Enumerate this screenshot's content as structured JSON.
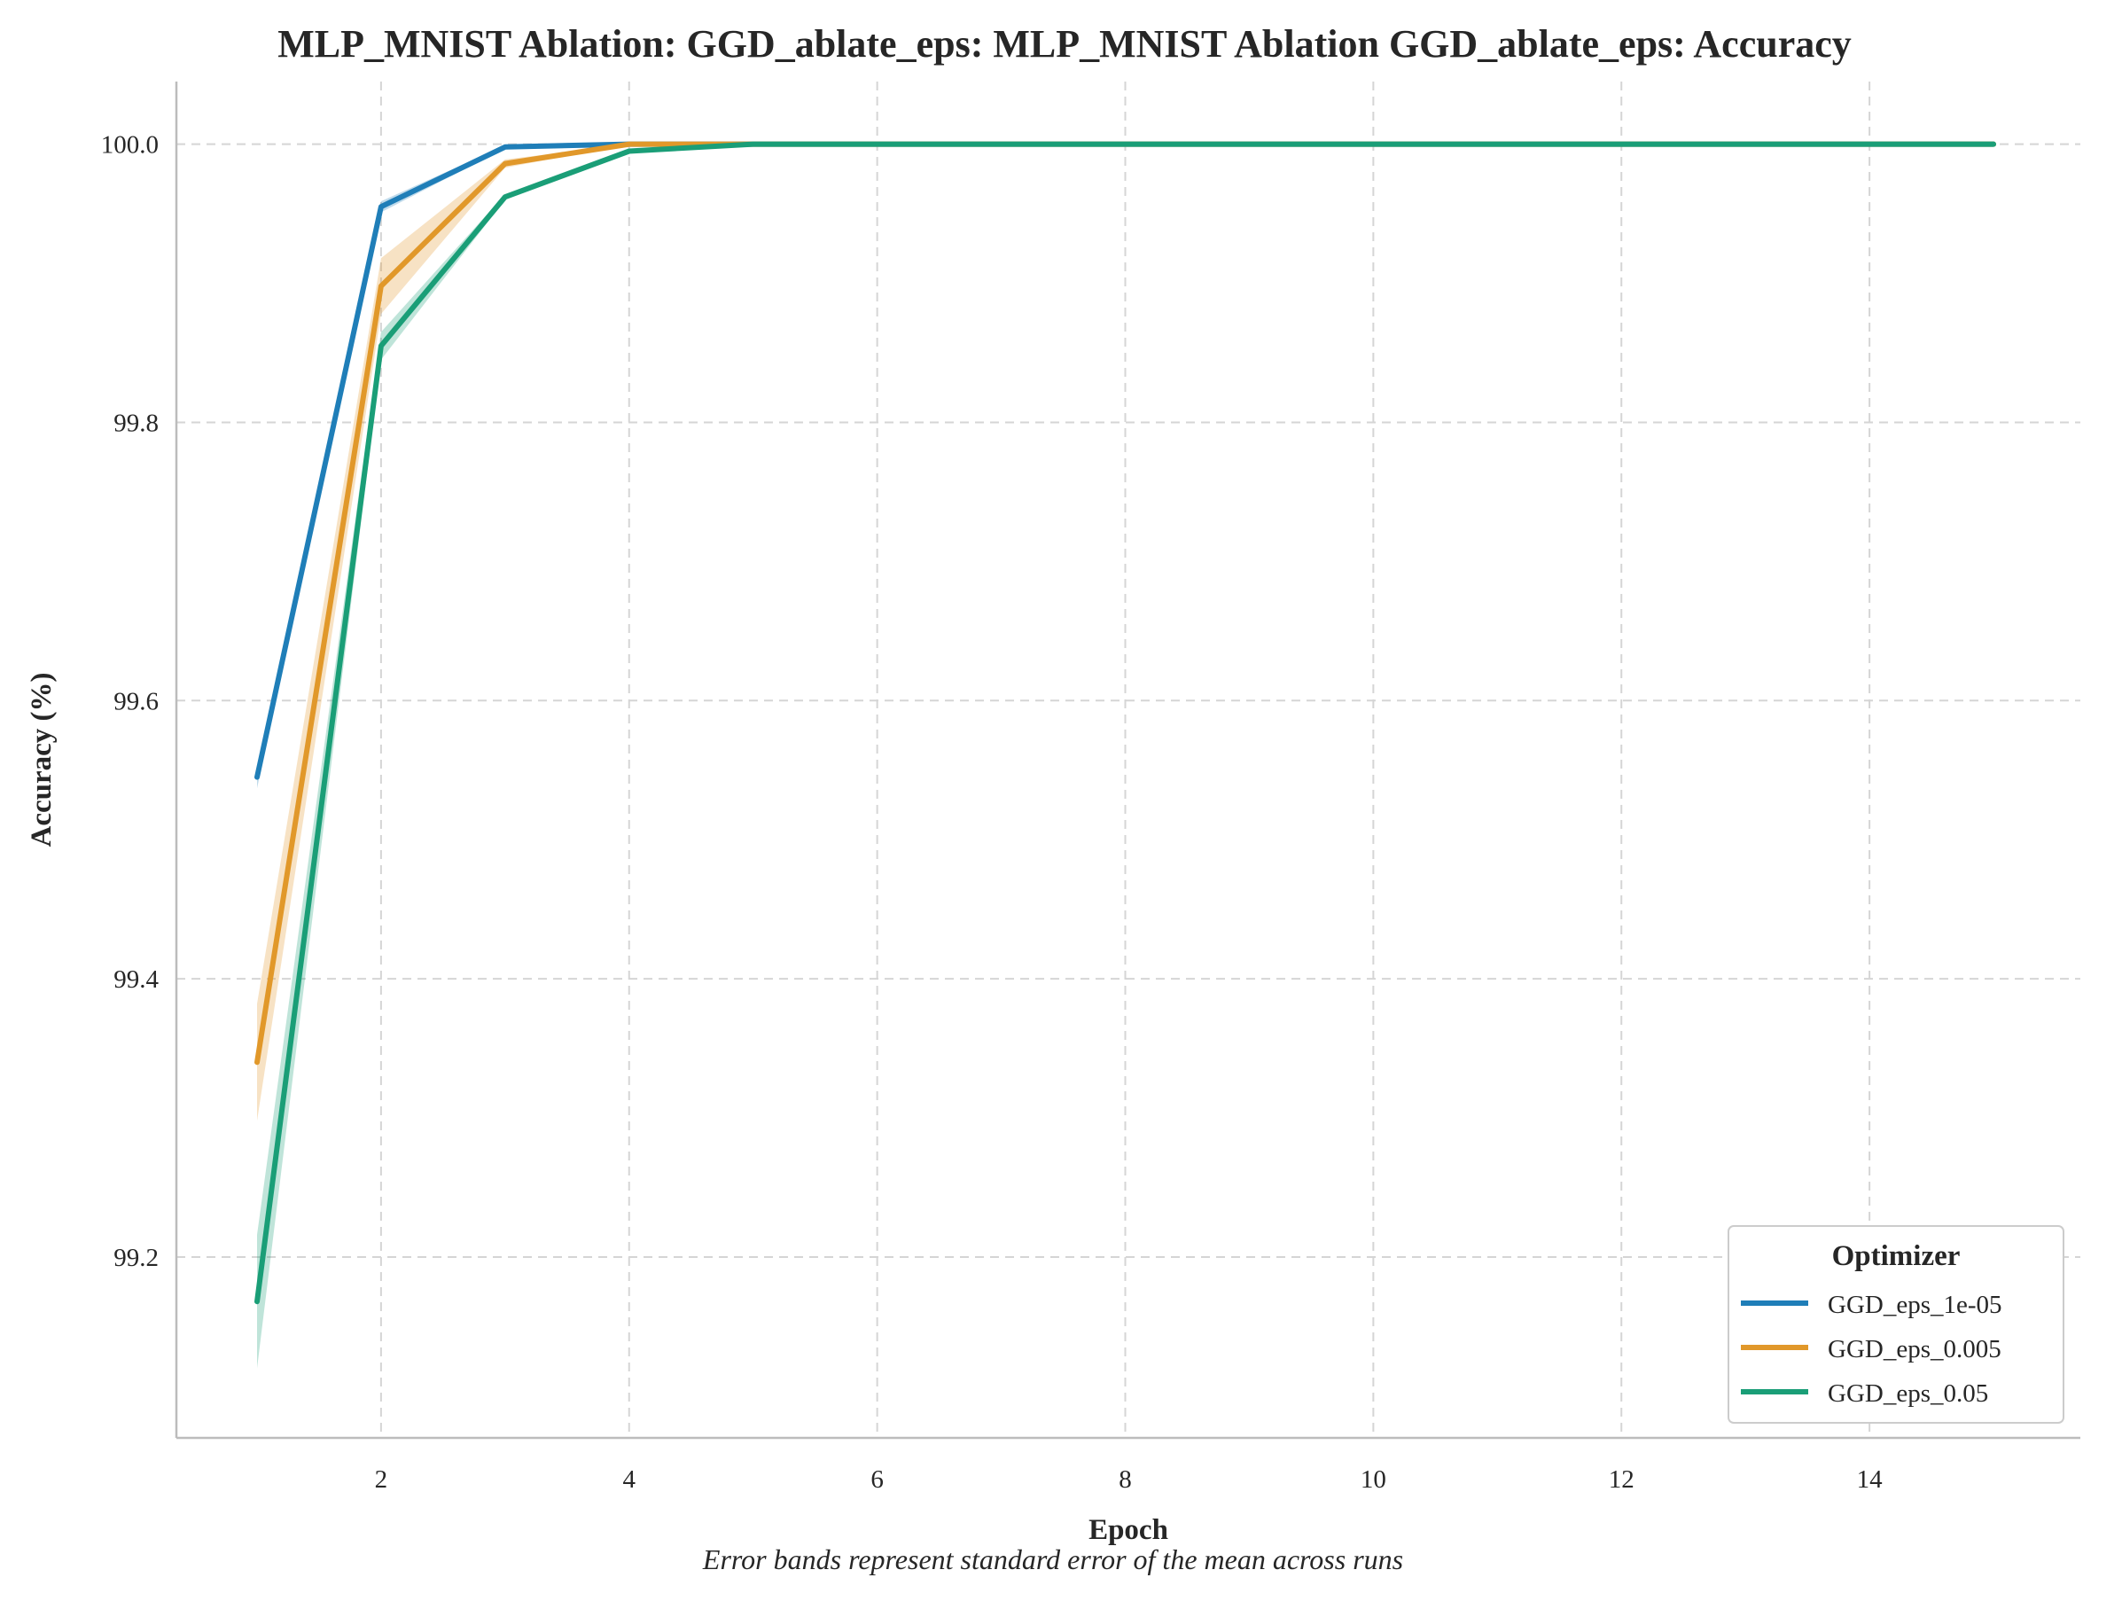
{
  "chart_data": {
    "type": "line",
    "title": "MLP_MNIST Ablation: GGD_ablate_eps: MLP_MNIST Ablation GGD_ablate_eps: Accuracy",
    "xlabel": "Epoch",
    "ylabel": "Accuracy (%)",
    "caption": "Error bands represent standard error of the mean across runs",
    "xlim": [
      0.35,
      15.7
    ],
    "ylim": [
      99.07,
      100.045
    ],
    "xticks": [
      2,
      4,
      6,
      8,
      10,
      12,
      14
    ],
    "yticks": [
      99.2,
      99.4,
      99.6,
      99.8,
      100.0
    ],
    "ytick_labels": [
      "99.2",
      "99.4",
      "99.6",
      "99.8",
      "100.0"
    ],
    "grid": true,
    "legend": {
      "title": "Optimizer",
      "placement": "lower-right"
    },
    "x": [
      1,
      2,
      3,
      4,
      5,
      6,
      7,
      8,
      9,
      10,
      11,
      12,
      13,
      14,
      15
    ],
    "series": [
      {
        "name": "GGD_eps_1e-05",
        "color": "#1f7eb8",
        "values": [
          99.545,
          99.955,
          99.998,
          100.0,
          100.0,
          100.0,
          100.0,
          100.0,
          100.0,
          100.0,
          100.0,
          100.0,
          100.0,
          100.0,
          100.0
        ],
        "err": [
          0.008,
          0.004,
          0.001,
          0,
          0,
          0,
          0,
          0,
          0,
          0,
          0,
          0,
          0,
          0,
          0
        ]
      },
      {
        "name": "GGD_eps_0.005",
        "color": "#e1982a",
        "values": [
          99.34,
          99.898,
          99.986,
          100.0,
          100.0,
          100.0,
          100.0,
          100.0,
          100.0,
          100.0,
          100.0,
          100.0,
          100.0,
          100.0,
          100.0
        ],
        "err": [
          0.042,
          0.02,
          0.003,
          0,
          0,
          0,
          0,
          0,
          0,
          0,
          0,
          0,
          0,
          0,
          0
        ]
      },
      {
        "name": "GGD_eps_0.05",
        "color": "#1a9e77",
        "values": [
          99.168,
          99.855,
          99.962,
          99.995,
          100.0,
          100.0,
          100.0,
          100.0,
          100.0,
          100.0,
          100.0,
          100.0,
          100.0,
          100.0,
          100.0
        ],
        "err": [
          0.048,
          0.01,
          0.002,
          0.001,
          0,
          0,
          0,
          0,
          0,
          0,
          0,
          0,
          0,
          0,
          0
        ]
      }
    ]
  }
}
